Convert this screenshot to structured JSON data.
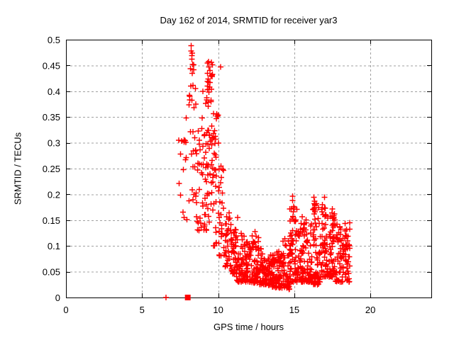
{
  "title": "Day 162 of 2014, SRMTID for receiver yar3",
  "chart_data": {
    "type": "scatter",
    "title": "Day 162 of 2014, SRMTID for receiver yar3",
    "xlabel": "GPS time / hours",
    "ylabel": "SRMTID / TECUs",
    "xlim": [
      0,
      24
    ],
    "ylim": [
      0,
      0.5
    ],
    "xticks": [
      0,
      5,
      10,
      15,
      20
    ],
    "xtick_labels": [
      "0",
      "5",
      "10",
      "15",
      "20"
    ],
    "yticks": [
      0,
      0.05,
      0.1,
      0.15,
      0.2,
      0.25,
      0.3,
      0.35,
      0.4,
      0.45,
      0.5
    ],
    "ytick_labels": [
      "0",
      "0.05",
      "0.1",
      "0.15",
      "0.2",
      "0.25",
      "0.3",
      "0.35",
      "0.4",
      "0.45",
      "0.5"
    ],
    "grid": true,
    "grid_color": "#a0a0a0",
    "axis_color": "#000000",
    "background_color": "#ffffff",
    "legend": "none",
    "marker": {
      "shape": "plus",
      "color": "#ff0000",
      "size": 8,
      "stroke_width": 1.4
    },
    "special_points": [
      {
        "x": 6.56,
        "y": 0.0,
        "marker": "plus"
      },
      {
        "x": 8.0,
        "y": 0.0,
        "marker": "filled-square"
      }
    ],
    "highlight_points": [
      [
        8.23,
        0.488
      ],
      [
        8.3,
        0.474
      ],
      [
        8.27,
        0.462
      ],
      [
        8.33,
        0.452
      ],
      [
        8.2,
        0.41
      ],
      [
        9.0,
        0.4
      ],
      [
        8.5,
        0.405
      ],
      [
        8.52,
        0.375
      ],
      [
        9.3,
        0.455
      ],
      [
        9.38,
        0.447
      ],
      [
        9.45,
        0.44
      ],
      [
        9.3,
        0.435
      ],
      [
        9.52,
        0.43
      ],
      [
        9.35,
        0.424
      ],
      [
        9.47,
        0.417
      ],
      [
        9.3,
        0.41
      ],
      [
        9.55,
        0.404
      ],
      [
        9.62,
        0.433
      ],
      [
        10.15,
        0.447
      ],
      [
        9.9,
        0.356
      ],
      [
        11.27,
        0.155
      ],
      [
        12.42,
        0.128
      ]
    ],
    "density_bins": [
      {
        "x0": 7.38,
        "x1": 7.75,
        "ymin": 0.14,
        "ymax": 0.33,
        "n": 7,
        "bias": 1.0
      },
      {
        "x0": 7.75,
        "x1": 8.05,
        "ymin": 0.15,
        "ymax": 0.36,
        "n": 9,
        "bias": 1.0
      },
      {
        "x0": 8.05,
        "x1": 8.45,
        "ymin": 0.17,
        "ymax": 0.43,
        "n": 16,
        "bias": 1.2
      },
      {
        "x0": 8.18,
        "x1": 8.42,
        "ymin": 0.38,
        "ymax": 0.49,
        "n": 7,
        "bias": 1.0
      },
      {
        "x0": 8.45,
        "x1": 8.95,
        "ymin": 0.13,
        "ymax": 0.33,
        "n": 26,
        "bias": 1.3
      },
      {
        "x0": 8.95,
        "x1": 9.25,
        "ymin": 0.13,
        "ymax": 0.4,
        "n": 28,
        "bias": 1.4
      },
      {
        "x0": 9.25,
        "x1": 9.65,
        "ymin": 0.13,
        "ymax": 0.34,
        "n": 30,
        "bias": 1.2
      },
      {
        "x0": 9.25,
        "x1": 9.62,
        "ymin": 0.36,
        "ymax": 0.46,
        "n": 16,
        "bias": 0.9
      },
      {
        "x0": 9.65,
        "x1": 10.05,
        "ymin": 0.1,
        "ymax": 0.36,
        "n": 30,
        "bias": 1.5
      },
      {
        "x0": 10.05,
        "x1": 10.45,
        "ymin": 0.08,
        "ymax": 0.27,
        "n": 26,
        "bias": 1.6
      },
      {
        "x0": 10.45,
        "x1": 10.85,
        "ymin": 0.06,
        "ymax": 0.17,
        "n": 30,
        "bias": 1.5
      },
      {
        "x0": 10.85,
        "x1": 11.2,
        "ymin": 0.045,
        "ymax": 0.135,
        "n": 42,
        "bias": 1.4
      },
      {
        "x0": 11.2,
        "x1": 11.7,
        "ymin": 0.03,
        "ymax": 0.125,
        "n": 55,
        "bias": 1.6
      },
      {
        "x0": 11.7,
        "x1": 12.2,
        "ymin": 0.03,
        "ymax": 0.11,
        "n": 55,
        "bias": 1.6
      },
      {
        "x0": 12.2,
        "x1": 12.7,
        "ymin": 0.028,
        "ymax": 0.125,
        "n": 55,
        "bias": 1.8
      },
      {
        "x0": 12.7,
        "x1": 13.2,
        "ymin": 0.025,
        "ymax": 0.095,
        "n": 55,
        "bias": 1.6
      },
      {
        "x0": 13.2,
        "x1": 13.7,
        "ymin": 0.02,
        "ymax": 0.085,
        "n": 55,
        "bias": 1.5
      },
      {
        "x0": 13.7,
        "x1": 14.2,
        "ymin": 0.018,
        "ymax": 0.09,
        "n": 55,
        "bias": 1.5
      },
      {
        "x0": 14.2,
        "x1": 14.7,
        "ymin": 0.015,
        "ymax": 0.115,
        "n": 55,
        "bias": 1.7
      },
      {
        "x0": 14.7,
        "x1": 15.2,
        "ymin": 0.03,
        "ymax": 0.175,
        "n": 50,
        "bias": 2.0
      },
      {
        "x0": 15.2,
        "x1": 15.7,
        "ymin": 0.03,
        "ymax": 0.145,
        "n": 50,
        "bias": 1.8
      },
      {
        "x0": 15.7,
        "x1": 16.2,
        "ymin": 0.03,
        "ymax": 0.16,
        "n": 50,
        "bias": 1.9
      },
      {
        "x0": 16.2,
        "x1": 16.7,
        "ymin": 0.025,
        "ymax": 0.19,
        "n": 50,
        "bias": 2.0
      },
      {
        "x0": 16.7,
        "x1": 17.2,
        "ymin": 0.04,
        "ymax": 0.185,
        "n": 50,
        "bias": 1.9
      },
      {
        "x0": 17.2,
        "x1": 17.7,
        "ymin": 0.04,
        "ymax": 0.175,
        "n": 48,
        "bias": 1.8
      },
      {
        "x0": 17.7,
        "x1": 18.2,
        "ymin": 0.03,
        "ymax": 0.15,
        "n": 45,
        "bias": 1.7
      },
      {
        "x0": 18.2,
        "x1": 18.65,
        "ymin": 0.03,
        "ymax": 0.145,
        "n": 40,
        "bias": 1.6
      },
      {
        "x0": 14.85,
        "x1": 14.98,
        "ymin": 0.1,
        "ymax": 0.197,
        "n": 8,
        "bias": 1.0
      },
      {
        "x0": 15.05,
        "x1": 15.18,
        "ymin": 0.09,
        "ymax": 0.175,
        "n": 6,
        "bias": 1.0
      },
      {
        "x0": 15.5,
        "x1": 15.62,
        "ymin": 0.09,
        "ymax": 0.158,
        "n": 6,
        "bias": 1.0
      },
      {
        "x0": 16.28,
        "x1": 16.42,
        "ymin": 0.11,
        "ymax": 0.208,
        "n": 10,
        "bias": 1.0
      },
      {
        "x0": 16.95,
        "x1": 17.08,
        "ymin": 0.1,
        "ymax": 0.198,
        "n": 9,
        "bias": 1.0
      },
      {
        "x0": 17.45,
        "x1": 17.6,
        "ymin": 0.1,
        "ymax": 0.19,
        "n": 9,
        "bias": 1.0
      },
      {
        "x0": 18.35,
        "x1": 18.5,
        "ymin": 0.07,
        "ymax": 0.155,
        "n": 6,
        "bias": 1.0
      }
    ],
    "seed": 7
  }
}
